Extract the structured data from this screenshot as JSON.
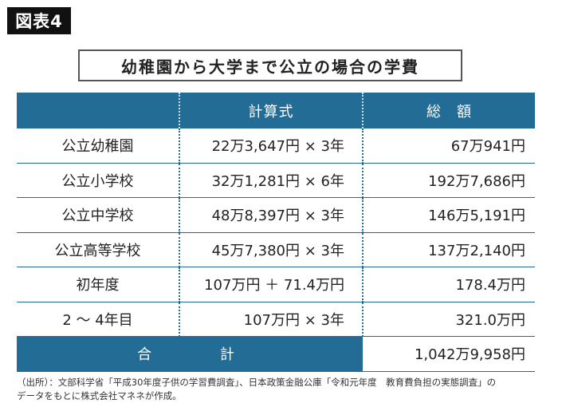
{
  "figure_label": "図表4",
  "title": "幼稚園から大学まで公立の場合の学費",
  "table": {
    "headers": [
      "",
      "計算式",
      "総　額"
    ],
    "rows": [
      {
        "name": "公立幼稚園",
        "calc": "22万3,647円 × 3年",
        "total": "67万941円"
      },
      {
        "name": "公立小学校",
        "calc": "32万1,281円 × 6年",
        "total": "192万7,686円"
      },
      {
        "name": "公立中学校",
        "calc": "48万8,397円 × 3年",
        "total": "146万5,191円"
      },
      {
        "name": "公立高等学校",
        "calc": "45万7,380円 × 3年",
        "total": "137万2,140円"
      },
      {
        "name": "初年度",
        "calc": "107万円 ＋ 71.4万円",
        "total": "178.4万円"
      },
      {
        "name": "2 ～ 4年目",
        "calc": "107万円 × 3年",
        "total": "321.0万円"
      }
    ],
    "total_label": "合 計",
    "total_value": "1,042万9,958円"
  },
  "source_line1": "（出所）：文部科学省「平成30年度子供の学習費調査」、日本政策金融公庫「令和元年度　教育費負担の実態調査」の",
  "source_line2": "データをもとに株式会社マネネが作成。",
  "colors": {
    "header_bg": "#236c95",
    "label_bg": "#111111"
  }
}
